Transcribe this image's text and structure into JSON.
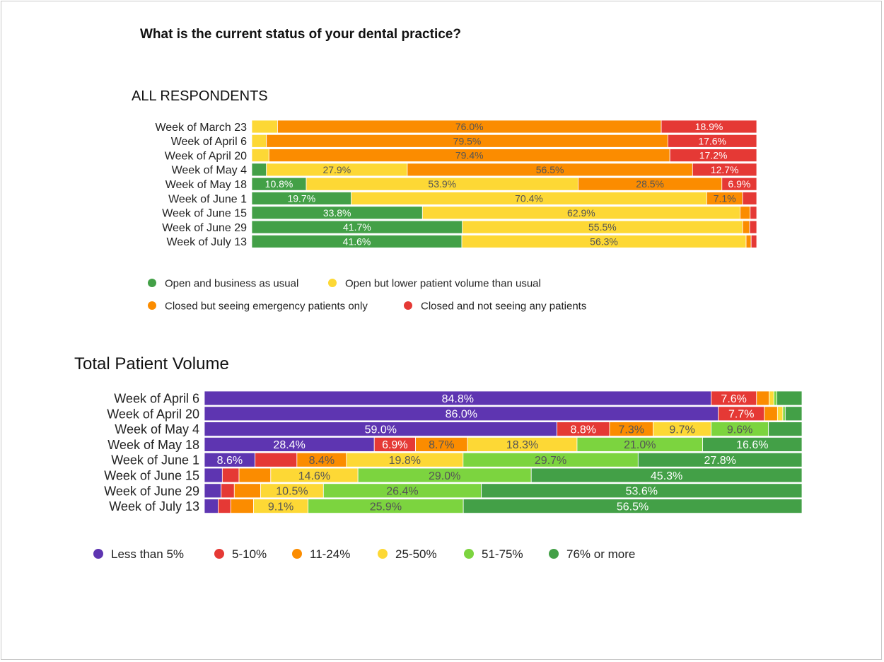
{
  "page": {
    "title": "What is the current status of your dental practice?"
  },
  "chart_data": [
    {
      "type": "bar",
      "orientation": "horizontal",
      "stacked": "percent",
      "title": "ALL RESPONDENTS",
      "categories": [
        "Week of March 23",
        "Week of April 6",
        "Week of April 20",
        "Week of May 4",
        "Week of May 18",
        "Week of June 1",
        "Week of June 15",
        "Week of June 29",
        "Week of July 13"
      ],
      "series": [
        {
          "name": "Open and business as usual",
          "color": "#43a047",
          "values": [
            0.0,
            0.0,
            0.0,
            2.9,
            10.8,
            19.7,
            33.8,
            41.7,
            41.6
          ]
        },
        {
          "name": "Open but lower patient volume than usual",
          "color": "#fdd835",
          "values": [
            5.1,
            2.9,
            3.4,
            27.9,
            53.9,
            70.4,
            62.9,
            55.5,
            56.3
          ]
        },
        {
          "name": "Closed but seeing emergency patients only",
          "color": "#fb8c00",
          "values": [
            76.0,
            79.5,
            79.4,
            56.5,
            28.5,
            7.1,
            2.0,
            1.4,
            1.0
          ]
        },
        {
          "name": "Closed and not seeing any patients",
          "color": "#e53935",
          "values": [
            18.9,
            17.6,
            17.2,
            12.7,
            6.9,
            2.8,
            1.3,
            1.4,
            1.1
          ]
        }
      ],
      "data_labels": [
        [
          null,
          null,
          null,
          null,
          "10.8%",
          "19.7%",
          "33.8%",
          "41.7%",
          "41.6%"
        ],
        [
          null,
          null,
          null,
          "27.9%",
          "53.9%",
          "70.4%",
          "62.9%",
          "55.5%",
          "56.3%"
        ],
        [
          "76.0%",
          "79.5%",
          "79.4%",
          "56.5%",
          "28.5%",
          "7.1%",
          null,
          null,
          null
        ],
        [
          "18.9%",
          "17.6%",
          "17.2%",
          "12.7%",
          "6.9%",
          null,
          null,
          null,
          null
        ]
      ],
      "xlim": [
        0,
        100
      ],
      "grid": false,
      "legend": "bottom"
    },
    {
      "type": "bar",
      "orientation": "horizontal",
      "stacked": "percent",
      "title": "Total Patient Volume",
      "categories": [
        "Week of April 6",
        "Week of April 20",
        "Week of May 4",
        "Week of May 18",
        "Week of June 1",
        "Week of June 15",
        "Week of June 29",
        "Week of July 13"
      ],
      "series": [
        {
          "name": "Less than 5%",
          "color": "#5e35b1",
          "values": [
            84.8,
            86.0,
            59.0,
            28.4,
            8.6,
            3.0,
            2.8,
            2.3
          ]
        },
        {
          "name": "5-10%",
          "color": "#e53935",
          "values": [
            7.6,
            7.7,
            8.8,
            6.9,
            7.1,
            2.8,
            2.2,
            2.1
          ]
        },
        {
          "name": "11-24%",
          "color": "#fb8c00",
          "values": [
            2.1,
            2.2,
            7.3,
            8.7,
            8.4,
            5.3,
            4.4,
            3.8
          ]
        },
        {
          "name": "25-50%",
          "color": "#fdd835",
          "values": [
            0.8,
            0.9,
            9.7,
            18.3,
            19.8,
            14.6,
            10.5,
            9.1
          ]
        },
        {
          "name": "51-75%",
          "color": "#7cd43f",
          "values": [
            0.5,
            0.4,
            9.6,
            21.0,
            29.7,
            29.0,
            26.4,
            25.9
          ]
        },
        {
          "name": "76% or more",
          "color": "#43a047",
          "values": [
            4.2,
            2.8,
            5.6,
            16.6,
            27.8,
            45.3,
            53.6,
            56.5
          ]
        }
      ],
      "data_labels": [
        [
          "84.8%",
          "86.0%",
          "59.0%",
          "28.4%",
          "8.6%",
          null,
          null,
          null
        ],
        [
          "7.6%",
          "7.7%",
          "8.8%",
          "6.9%",
          null,
          null,
          null,
          null
        ],
        [
          null,
          null,
          "7.3%",
          "8.7%",
          "8.4%",
          null,
          null,
          null
        ],
        [
          null,
          null,
          "9.7%",
          "18.3%",
          "19.8%",
          "14.6%",
          "10.5%",
          "9.1%"
        ],
        [
          null,
          null,
          "9.6%",
          "21.0%",
          "29.7%",
          "29.0%",
          "26.4%",
          "25.9%"
        ],
        [
          null,
          null,
          null,
          "16.6%",
          "27.8%",
          "45.3%",
          "53.6%",
          "56.5%"
        ]
      ],
      "xlim": [
        0,
        100
      ],
      "grid": false,
      "legend": "bottom"
    }
  ]
}
